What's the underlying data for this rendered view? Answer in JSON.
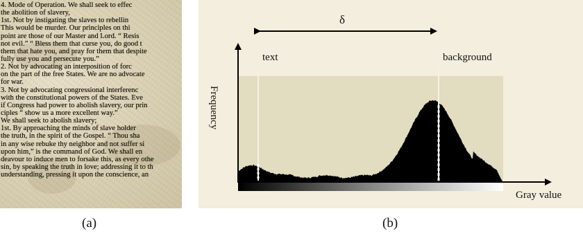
{
  "panel_a": {
    "caption": "(a)",
    "lines": [
      "4.  Mode of Operation.  We shall seek to effec",
      "the abolition of slavery,",
      "   1st.  Not by instigating the slaves to rebellin",
      "This would be murder.  Our principles on thi",
      "point are those of our Master and Lord.  “ Resis",
      "not evil.”  “ Bless them that curse you, do good t",
      "them that hate you, and pray for them that despite",
      "fully use you and persecute you.”",
      "   2.  Not by advocating an interposition of forc",
      "on the part of the free States.  We are no advocate",
      "for war.",
      "   3.  Not by advocating congressional interferenc",
      "with the constitutional powers of the States.  Eve",
      "if Congress had power to abolish slavery, our prin",
      "ciples “ show  us a more excellent way.”",
      "   We shall seek to abolish slavery;",
      "   1st.  By approaching the minds of slave holder",
      "the truth, in the spirit of the Gospel.  “ Thou sha",
      "in any wise rebuke thy neighbor and not suffer si",
      "upon him,” is the command of God.  We shall en",
      "deavour to induce men to forsake this, as every othe",
      "sin, by speaking the truth in love; addressing it to th",
      "understanding, pressing it upon the conscience, an"
    ]
  },
  "panel_b": {
    "caption": "(b)",
    "delta_label": "δ",
    "text_label": "text",
    "background_label": "background",
    "y_axis_label": "Frequency",
    "x_axis_label": "Gray value",
    "colors": {
      "background": "#f3eedd",
      "plot_area": "#e2dcc0",
      "histogram": "#000000",
      "marker_lines": "#ffffff"
    }
  }
}
